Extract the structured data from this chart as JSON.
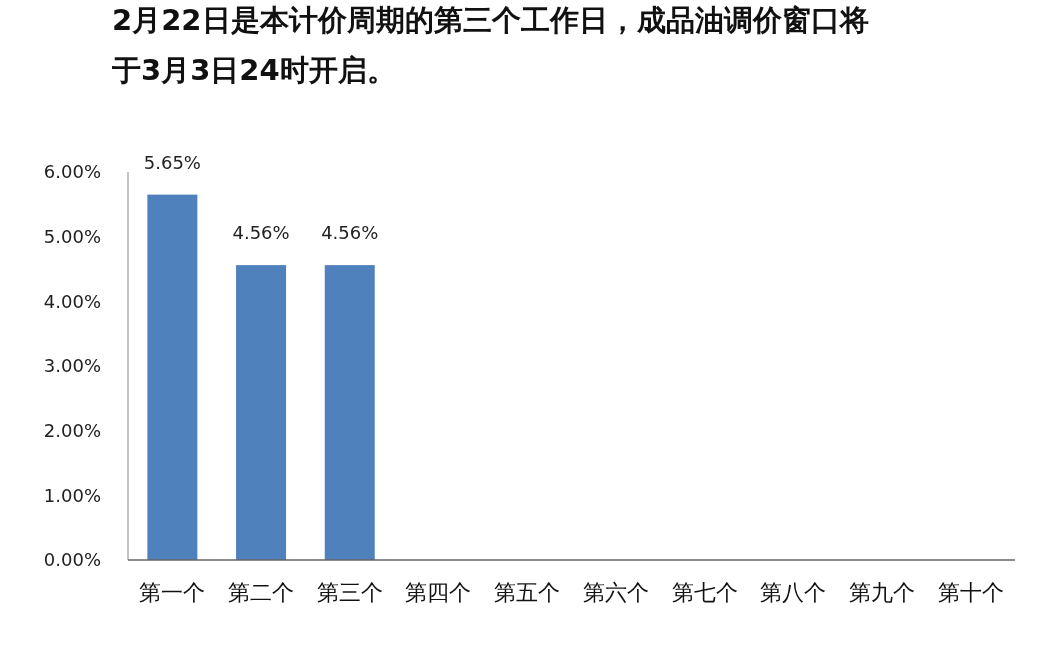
{
  "chart_data": {
    "type": "bar",
    "title": "2月22日是本计价周期的第三个工作日，成品油调价窗口将于3月3日24时开启。",
    "categories": [
      "第一个",
      "第二个",
      "第三个",
      "第四个",
      "第五个",
      "第六个",
      "第七个",
      "第八个",
      "第九个",
      "第十个"
    ],
    "values": [
      5.65,
      4.56,
      4.56,
      null,
      null,
      null,
      null,
      null,
      null,
      null
    ],
    "value_labels": [
      "5.65%",
      "4.56%",
      "4.56%",
      null,
      null,
      null,
      null,
      null,
      null,
      null
    ],
    "color": "#4f81bd",
    "ylim": [
      0,
      6
    ],
    "yticks": [
      {
        "value": 0,
        "label": "0.00%"
      },
      {
        "value": 1,
        "label": "1.00%"
      },
      {
        "value": 2,
        "label": "2.00%"
      },
      {
        "value": 3,
        "label": "3.00%"
      },
      {
        "value": 4,
        "label": "4.00%"
      },
      {
        "value": 5,
        "label": "5.00%"
      },
      {
        "value": 6,
        "label": "6.00%"
      }
    ],
    "grid": false
  }
}
